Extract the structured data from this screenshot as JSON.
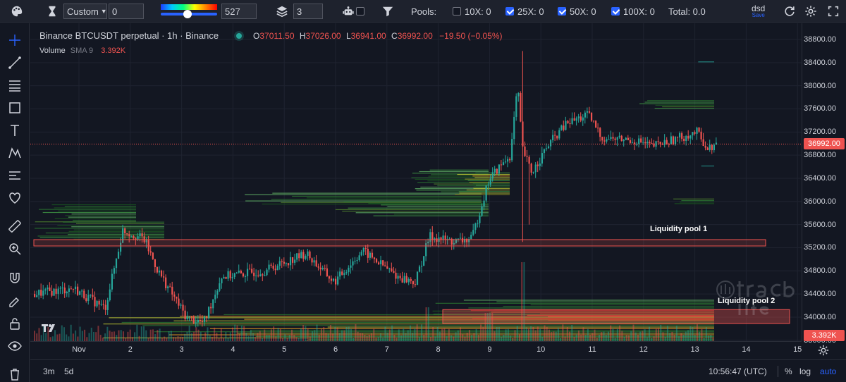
{
  "toolbar": {
    "mode_value": "Custom",
    "mode_input": "0",
    "gradient_value": "527",
    "layers_value": "3",
    "pools_label": "Pools:",
    "pools": [
      {
        "label": "10X: 0",
        "checked": false
      },
      {
        "label": "25X: 0",
        "checked": true
      },
      {
        "label": "50X: 0",
        "checked": true
      },
      {
        "label": "100X: 0",
        "checked": true
      }
    ],
    "total": "Total: 0.0",
    "user": "dsd",
    "save_label": "Save"
  },
  "legend": {
    "symbol": "Binance BTCUSDT perpetual · 1h · Binance",
    "o_label": "O",
    "o_value": "37011.50",
    "h_label": "H",
    "h_value": "37026.00",
    "l_label": "L",
    "l_value": "36941.00",
    "c_label": "C",
    "c_value": "36992.00",
    "change": "−19.50 (−0.05%)",
    "volume_label": "Volume",
    "volume_sma": "SMA 9",
    "volume_value": "3.392K"
  },
  "annotations": {
    "pool1": "Liquidity pool 1",
    "pool2": "Liquidity pool 2"
  },
  "price_axis": {
    "ticks": [
      "38800.00",
      "38400.00",
      "38000.00",
      "37600.00",
      "37200.00",
      "36800.00",
      "36400.00",
      "36000.00",
      "35600.00",
      "35200.00",
      "34800.00",
      "34400.00",
      "34000.00",
      "33600.00"
    ],
    "current_price": "36992.00",
    "volume_tag": "3.392K"
  },
  "time_axis": {
    "ticks": [
      "Nov",
      "2",
      "3",
      "4",
      "5",
      "6",
      "7",
      "8",
      "9",
      "10",
      "11",
      "12",
      "13",
      "14",
      "15"
    ]
  },
  "bottom": {
    "range_3m": "3m",
    "range_5d": "5d",
    "clock": "10:56:47 (UTC)",
    "pct": "%",
    "log": "log",
    "auto": "auto"
  },
  "colors": {
    "bull": "#26a69a",
    "bear": "#ef5350",
    "accent": "#2962ff",
    "background": "#131722"
  },
  "icons": {
    "palette": "palette-icon",
    "hourglass": "hourglass-icon",
    "layers": "layers-icon",
    "robot": "robot-icon",
    "filter": "filter-icon",
    "settings": "gear-icon"
  }
}
